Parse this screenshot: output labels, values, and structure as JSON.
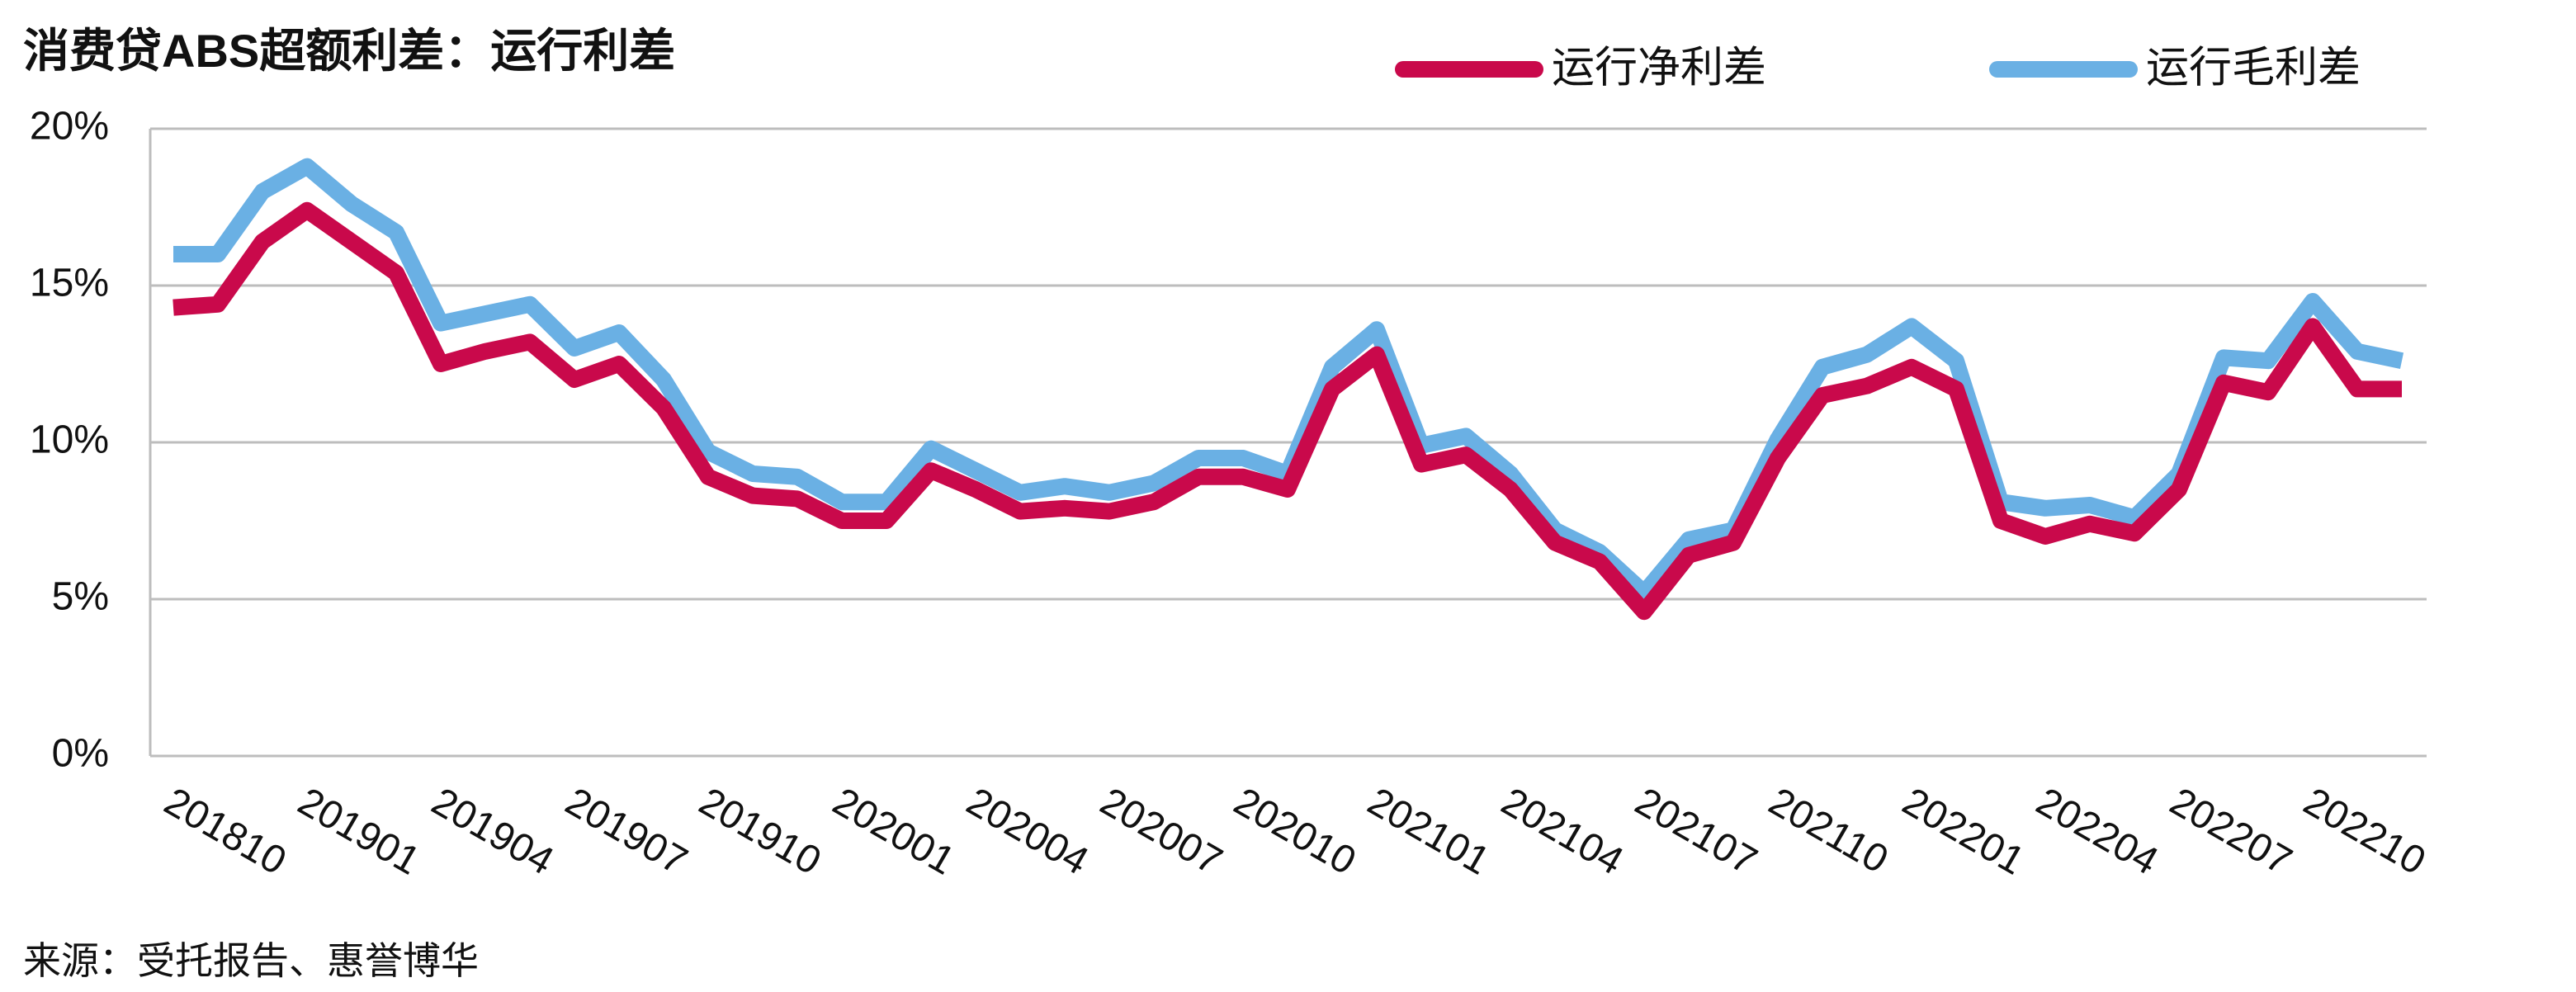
{
  "chart_data": {
    "type": "line",
    "title": "消费贷ABS超额利差：运行利差",
    "source": "来源：受托报告、惠誉博华",
    "categories": [
      "201810",
      null,
      null,
      "201901",
      null,
      null,
      "201904",
      null,
      null,
      "201907",
      null,
      null,
      "201910",
      null,
      null,
      "202001",
      null,
      null,
      "202004",
      null,
      null,
      "202007",
      null,
      null,
      "202010",
      null,
      null,
      "202101",
      null,
      null,
      "202104",
      null,
      null,
      "202107",
      null,
      null,
      "202110",
      null,
      null,
      "202201",
      null,
      null,
      "202204",
      null,
      null,
      "202207",
      null,
      null,
      "202210",
      null,
      null
    ],
    "series": [
      {
        "name": "运行净利差",
        "color": "#c9094b",
        "values": [
          14.3,
          14.4,
          16.4,
          17.4,
          16.4,
          15.4,
          12.5,
          12.9,
          13.2,
          12.0,
          12.5,
          11.1,
          8.9,
          8.3,
          8.2,
          7.5,
          7.5,
          9.1,
          8.5,
          7.8,
          7.9,
          7.8,
          8.1,
          8.9,
          8.9,
          8.5,
          11.7,
          12.8,
          9.3,
          9.6,
          8.5,
          6.8,
          6.2,
          4.6,
          6.4,
          6.8,
          9.5,
          11.5,
          11.8,
          12.4,
          11.7,
          7.5,
          7.0,
          7.4,
          7.1,
          8.5,
          11.9,
          11.6,
          13.7,
          11.7,
          11.7
        ]
      },
      {
        "name": "运行毛利差",
        "color": "#6ab0e4",
        "values": [
          16.0,
          16.0,
          18.0,
          18.8,
          17.6,
          16.7,
          13.8,
          14.1,
          14.4,
          13.0,
          13.5,
          12.0,
          9.7,
          9.0,
          8.9,
          8.1,
          8.1,
          9.8,
          9.1,
          8.4,
          8.6,
          8.4,
          8.7,
          9.5,
          9.5,
          9.0,
          12.4,
          13.6,
          9.9,
          10.2,
          9.0,
          7.2,
          6.5,
          5.2,
          6.9,
          7.2,
          10.1,
          12.4,
          12.8,
          13.7,
          12.6,
          8.1,
          7.9,
          8.0,
          7.6,
          9.0,
          12.7,
          12.6,
          14.5,
          12.9,
          12.6
        ]
      }
    ],
    "ylim": [
      0,
      20
    ],
    "yticks": [
      {
        "value": 0,
        "label": "0%"
      },
      {
        "value": 5,
        "label": "5%"
      },
      {
        "value": 10,
        "label": "10%"
      },
      {
        "value": 15,
        "label": "15%"
      },
      {
        "value": 20,
        "label": "20%"
      }
    ],
    "grid": true
  }
}
